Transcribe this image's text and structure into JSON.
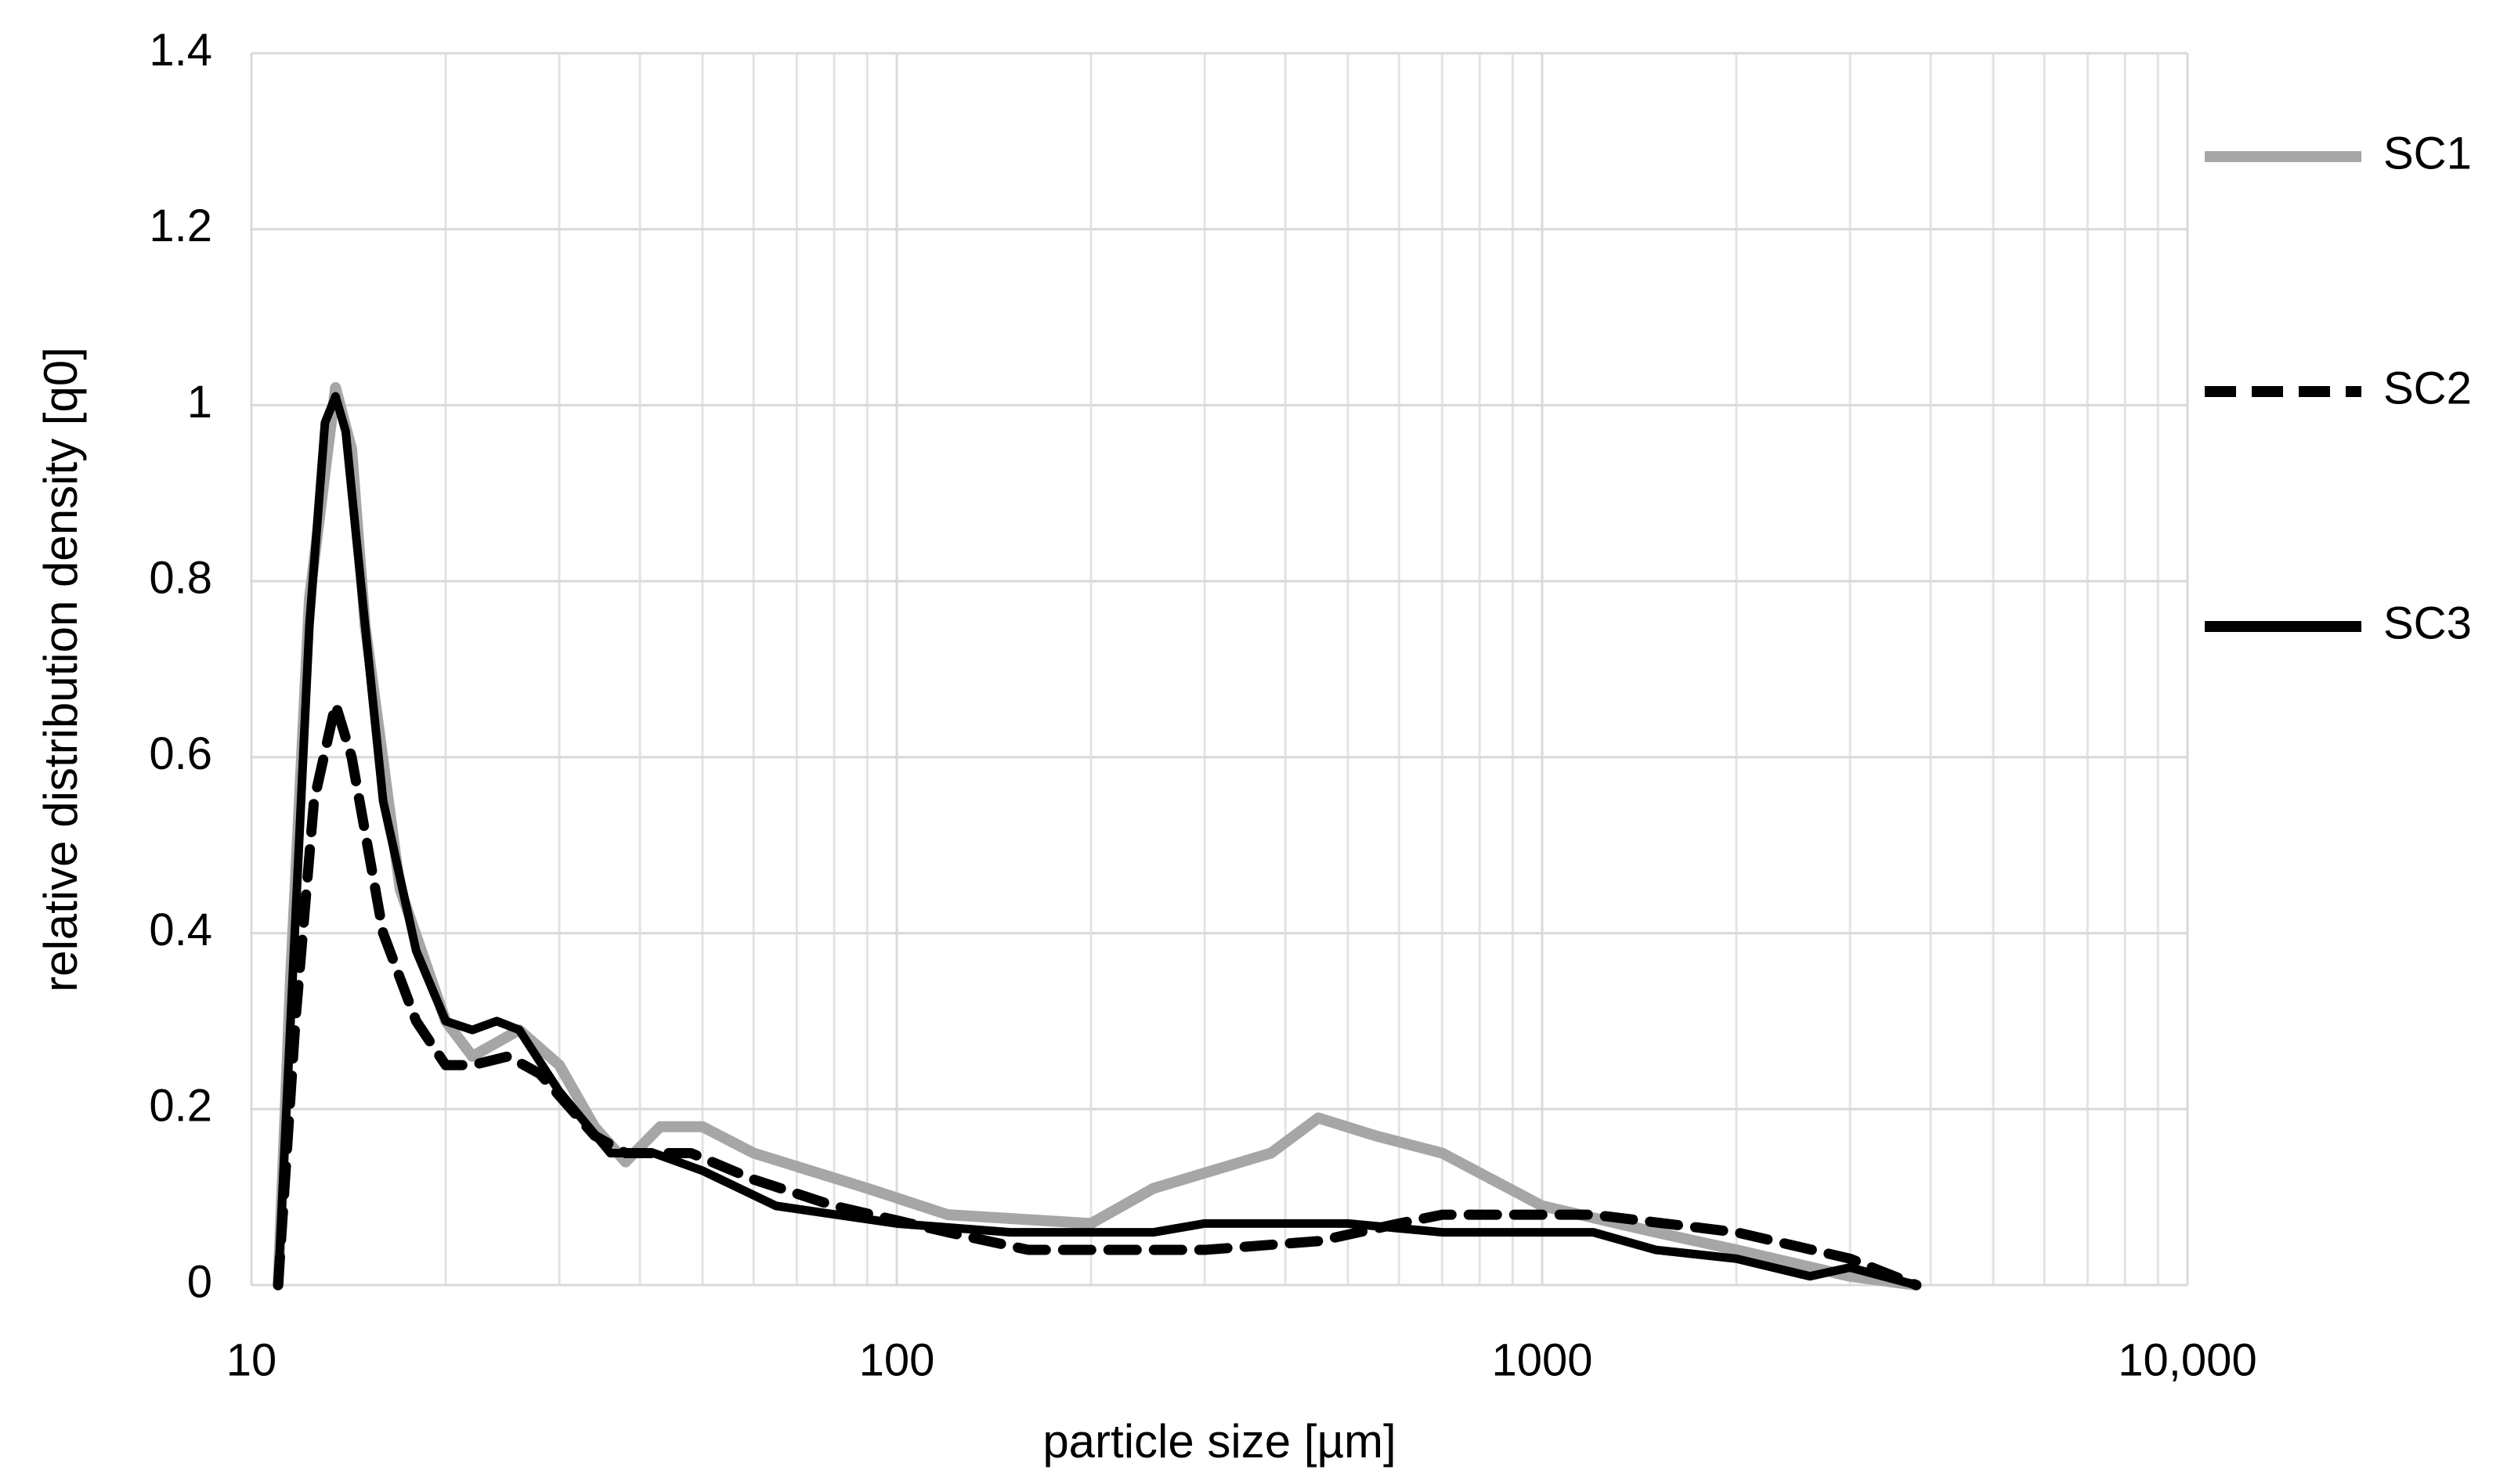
{
  "chart_data": {
    "type": "line",
    "xlabel": "particle size [µm]",
    "ylabel": "relative distribution density [q0]",
    "xscale": "log",
    "xlim": [
      10,
      10000
    ],
    "xticks": [
      10,
      100,
      1000,
      {
        "value": 10000,
        "label": "10,000"
      }
    ],
    "ylim": [
      0,
      1.4
    ],
    "yticks": [
      0,
      0.2,
      0.4,
      0.6,
      0.8,
      1,
      1.2,
      1.4
    ],
    "grid": true,
    "legend": "right",
    "series": [
      {
        "name": "SC1",
        "color": "#a6a6a6",
        "style": "solid",
        "x": [
          11,
          11.5,
          12.3,
          13.5,
          14.3,
          15,
          17,
          20,
          22,
          26,
          30,
          34,
          38,
          43,
          50,
          60,
          90,
          120,
          200,
          250,
          380,
          450,
          550,
          700,
          1000,
          1500,
          2000,
          3000,
          3800
        ],
        "values": [
          0,
          0.35,
          0.78,
          1.02,
          0.95,
          0.75,
          0.45,
          0.3,
          0.26,
          0.29,
          0.25,
          0.18,
          0.14,
          0.18,
          0.18,
          0.15,
          0.11,
          0.08,
          0.07,
          0.11,
          0.15,
          0.19,
          0.17,
          0.15,
          0.09,
          0.06,
          0.04,
          0.01,
          0
        ]
      },
      {
        "name": "SC2",
        "color": "#000000",
        "style": "dashed",
        "x": [
          11,
          11.7,
          12.5,
          13.5,
          14.3,
          16,
          18,
          20,
          22,
          25,
          28,
          34,
          38,
          48,
          60,
          80,
          120,
          160,
          300,
          450,
          600,
          700,
          1200,
          2000,
          3000,
          3800
        ],
        "values": [
          0,
          0.3,
          0.55,
          0.66,
          0.6,
          0.4,
          0.3,
          0.25,
          0.25,
          0.26,
          0.24,
          0.17,
          0.15,
          0.15,
          0.12,
          0.09,
          0.06,
          0.04,
          0.04,
          0.05,
          0.07,
          0.08,
          0.08,
          0.06,
          0.03,
          0
        ]
      },
      {
        "name": "SC3",
        "color": "#000000",
        "style": "solid",
        "x": [
          11,
          11.5,
          12.3,
          13,
          13.5,
          14,
          15,
          16,
          18,
          20,
          22,
          24,
          26,
          30,
          36,
          42,
          50,
          65,
          100,
          150,
          250,
          300,
          500,
          700,
          1200,
          1500,
          2000,
          2600,
          3000,
          3800
        ],
        "values": [
          0,
          0.3,
          0.75,
          0.98,
          1.01,
          0.97,
          0.75,
          0.55,
          0.38,
          0.3,
          0.29,
          0.3,
          0.29,
          0.22,
          0.15,
          0.15,
          0.13,
          0.09,
          0.07,
          0.06,
          0.06,
          0.07,
          0.07,
          0.06,
          0.06,
          0.04,
          0.03,
          0.01,
          0.02,
          0
        ]
      }
    ]
  }
}
